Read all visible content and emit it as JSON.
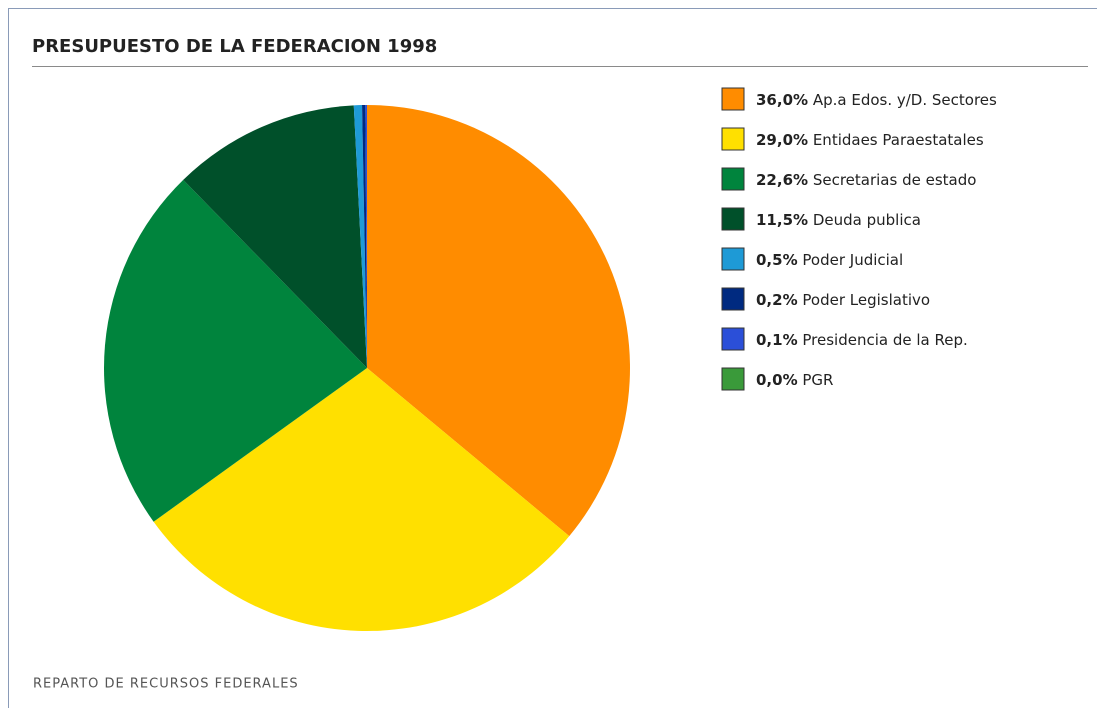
{
  "chart_data": {
    "type": "pie",
    "title": "PRESUPUESTO DE LA FEDERACION 1998",
    "subtitle": "REPARTO DE RECURSOS FEDERALES",
    "categories": [
      "Ap.a Edos. y/D. Sectores",
      "Entidaes Paraestatales",
      "Secretarias de estado",
      "Deuda publica",
      "Poder Judicial",
      "Poder Legislativo",
      "Presidencia de la Rep.",
      "PGR"
    ],
    "values": [
      36.0,
      29.0,
      22.6,
      11.5,
      0.5,
      0.2,
      0.1,
      0.0
    ],
    "value_labels": [
      "36,0%",
      "29,0%",
      "22,6%",
      "11,5%",
      "0,5%",
      "0,2%",
      "0,1%",
      "0,0%"
    ],
    "colors": [
      "#ff8c00",
      "#ffe000",
      "#00843d",
      "#00502a",
      "#1e9ad6",
      "#002a80",
      "#2b4fd8",
      "#3a9a3a"
    ],
    "legend": "right"
  }
}
